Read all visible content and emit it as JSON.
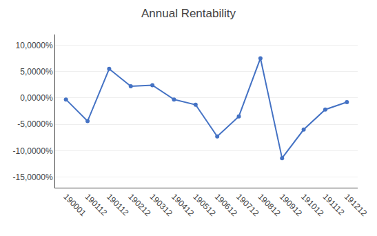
{
  "chart_data": {
    "type": "line",
    "title": "Annual Rentability",
    "categories": [
      "190001",
      "190112",
      "190112",
      "190212",
      "190312",
      "190412",
      "190512",
      "190612",
      "190712",
      "190812",
      "190912",
      "191012",
      "191112",
      "191212"
    ],
    "values": [
      -0.003,
      -0.044,
      0.055,
      0.022,
      0.024,
      -0.003,
      -0.013,
      -0.073,
      -0.035,
      0.075,
      -0.114,
      -0.06,
      -0.022,
      -0.008
    ],
    "color": "#4472c4",
    "marker": "circle",
    "ylim": [
      -0.17,
      0.12
    ],
    "yticks": [
      {
        "value": -0.15,
        "label": "-15,0000%"
      },
      {
        "value": -0.1,
        "label": "-10,0000%"
      },
      {
        "value": -0.05,
        "label": "-5,0000%"
      },
      {
        "value": 0.0,
        "label": "0,0000%"
      },
      {
        "value": 0.05,
        "label": "5,0000%"
      },
      {
        "value": 0.1,
        "label": "10,0000%"
      }
    ],
    "grid": true
  }
}
